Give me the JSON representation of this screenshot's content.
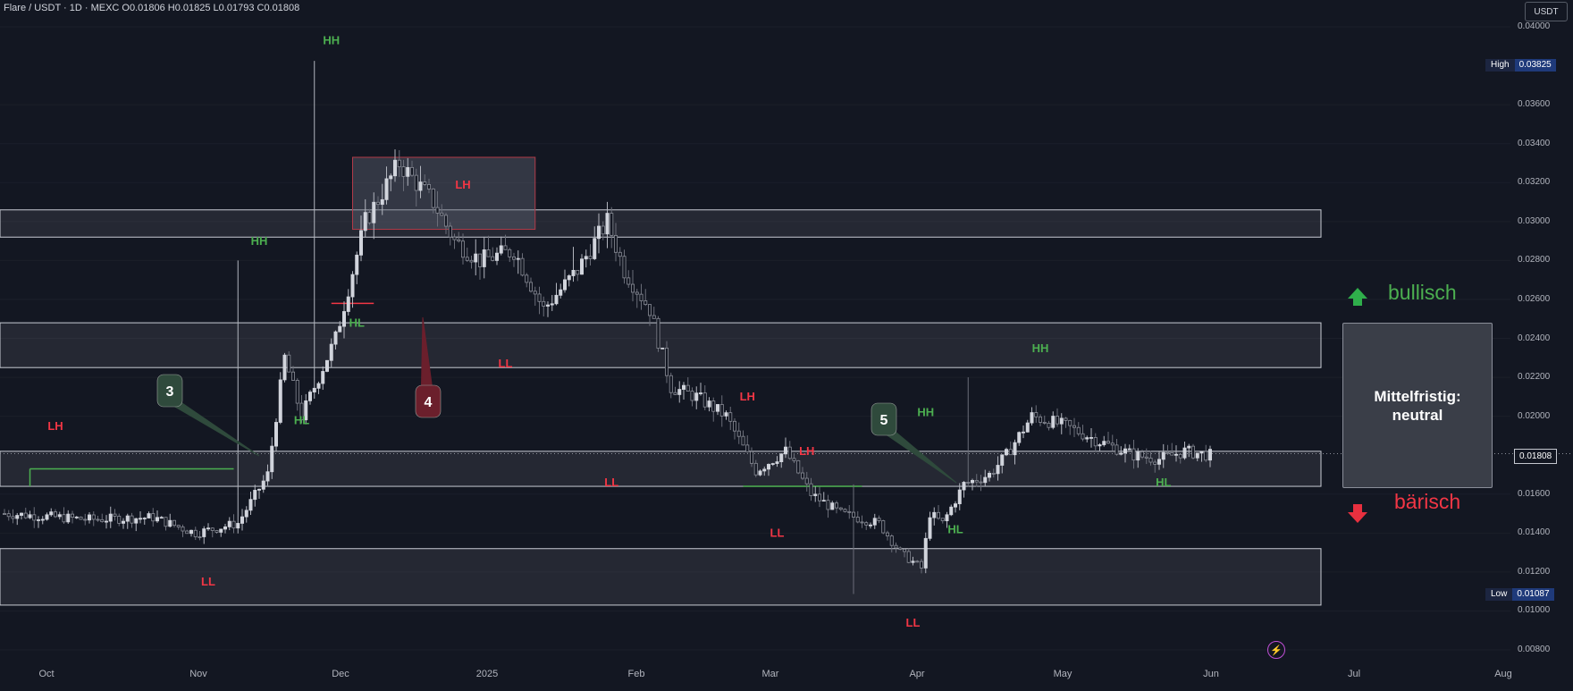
{
  "header": {
    "text": "Flare / USDT · 1D · MEXC  O0.01806  H0.01825  L0.01793  C0.01808",
    "currency": "USDT"
  },
  "price_labels": {
    "high_key": "High",
    "high_value": "0.03825",
    "low_key": "Low",
    "low_value": "0.01087",
    "current_value": "0.01808"
  },
  "annotations": {
    "mittelfristig": "Mittelfristig:",
    "neutral": "neutral",
    "bullisch": "bullisch",
    "baerisch": "bärisch",
    "callout_3": "3",
    "callout_4": "4",
    "callout_5": "5"
  },
  "colors": {
    "background": "#131722",
    "up_candle": "#b2b5be",
    "down_candle": "#5d606b",
    "bullish_green": "#4caf50",
    "bearish_red": "#f23645",
    "zone_fill": "#2a2e39"
  },
  "icons": [
    "arrow-up-icon",
    "arrow-down-icon",
    "flash-icon"
  ],
  "chart_data": {
    "type": "candlestick",
    "title": "Flare / USDT · 1D · MEXC",
    "ylim": [
      0.008,
      0.04
    ],
    "y_ticks": [
      "0.04000",
      "0.03600",
      "0.03400",
      "0.03200",
      "0.03000",
      "0.02800",
      "0.02600",
      "0.02400",
      "0.02200",
      "0.02000",
      "0.01600",
      "0.01400",
      "0.01200",
      "0.01000",
      "0.00800"
    ],
    "x_ticks": [
      "Oct",
      "Nov",
      "Dec",
      "2025",
      "Feb",
      "Mar",
      "Apr",
      "May",
      "Jun",
      "Jul",
      "Aug"
    ],
    "close_anchors": [
      [
        0,
        0.015
      ],
      [
        20,
        0.0147
      ],
      [
        35,
        0.0148
      ],
      [
        45,
        0.014
      ],
      [
        55,
        0.0145
      ],
      [
        62,
        0.017
      ],
      [
        66,
        0.023
      ],
      [
        70,
        0.02
      ],
      [
        78,
        0.024
      ],
      [
        85,
        0.03
      ],
      [
        93,
        0.033
      ],
      [
        101,
        0.031
      ],
      [
        106,
        0.029
      ],
      [
        112,
        0.028
      ],
      [
        120,
        0.0285
      ],
      [
        127,
        0.0255
      ],
      [
        135,
        0.0275
      ],
      [
        142,
        0.03
      ],
      [
        146,
        0.0275
      ],
      [
        152,
        0.0255
      ],
      [
        157,
        0.0215
      ],
      [
        163,
        0.021
      ],
      [
        170,
        0.02
      ],
      [
        177,
        0.0172
      ],
      [
        184,
        0.0182
      ],
      [
        190,
        0.016
      ],
      [
        197,
        0.015
      ],
      [
        206,
        0.0145
      ],
      [
        211,
        0.013
      ],
      [
        216,
        0.0122
      ],
      [
        218,
        0.015
      ],
      [
        221,
        0.0145
      ],
      [
        226,
        0.0165
      ],
      [
        232,
        0.017
      ],
      [
        236,
        0.018
      ],
      [
        242,
        0.02
      ],
      [
        250,
        0.0195
      ],
      [
        258,
        0.0187
      ],
      [
        266,
        0.018
      ],
      [
        272,
        0.0178
      ],
      [
        278,
        0.0182
      ],
      [
        284,
        0.018
      ]
    ],
    "current_price": 0.01808,
    "high": 0.03825,
    "low": 0.01087,
    "zones": [
      {
        "from": 0.0292,
        "to": 0.0306
      },
      {
        "from": 0.0225,
        "to": 0.0248
      },
      {
        "from": 0.0164,
        "to": 0.0182
      },
      {
        "from": 0.0103,
        "to": 0.0132
      },
      {
        "from": 0.0296,
        "to": 0.0333,
        "color": "red"
      }
    ],
    "pivot_labels": [
      {
        "text": "HH",
        "day": 77,
        "price": 0.0391,
        "color": "green"
      },
      {
        "text": "HH",
        "day": 60,
        "price": 0.0288,
        "color": "green"
      },
      {
        "text": "HL",
        "day": 83,
        "price": 0.0246,
        "color": "green"
      },
      {
        "text": "HL",
        "day": 70,
        "price": 0.0196,
        "color": "green"
      },
      {
        "text": "LH",
        "day": 12,
        "price": 0.0193,
        "color": "red"
      },
      {
        "text": "LL",
        "day": 48,
        "price": 0.0113,
        "color": "red"
      },
      {
        "text": "LH",
        "day": 108,
        "price": 0.0317,
        "color": "red"
      },
      {
        "text": "LL",
        "day": 118,
        "price": 0.0225,
        "color": "red"
      },
      {
        "text": "LL",
        "day": 143,
        "price": 0.0164,
        "color": "red"
      },
      {
        "text": "LH",
        "day": 175,
        "price": 0.0208,
        "color": "red"
      },
      {
        "text": "LH",
        "day": 189,
        "price": 0.018,
        "color": "red"
      },
      {
        "text": "LL",
        "day": 182,
        "price": 0.0138,
        "color": "red"
      },
      {
        "text": "HH",
        "day": 217,
        "price": 0.02,
        "color": "green"
      },
      {
        "text": "HL",
        "day": 224,
        "price": 0.014,
        "color": "green"
      },
      {
        "text": "LL",
        "day": 214,
        "price": 0.0092,
        "color": "red"
      },
      {
        "text": "HH",
        "day": 244,
        "price": 0.0233,
        "color": "green"
      },
      {
        "text": "HL",
        "day": 273,
        "price": 0.0164,
        "color": "green"
      }
    ]
  }
}
